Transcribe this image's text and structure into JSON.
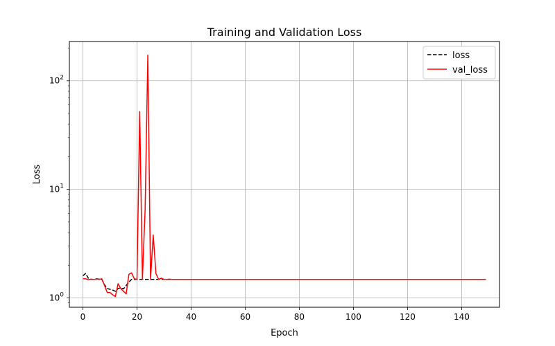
{
  "chart_data": {
    "type": "line",
    "title": "Training and Validation Loss",
    "xlabel": "Epoch",
    "ylabel": "Loss",
    "xlim": [
      -5,
      154
    ],
    "ylim": [
      0.82,
      230
    ],
    "yscale": "log",
    "grid": true,
    "legend_position": "top-right",
    "x_ticks": [
      0,
      20,
      40,
      60,
      80,
      100,
      120,
      140
    ],
    "x_tick_labels": [
      "0",
      "20",
      "40",
      "60",
      "80",
      "100",
      "120",
      "140"
    ],
    "y_ticks": [
      1,
      10,
      100
    ],
    "y_tick_labels": [
      {
        "base": "10",
        "exp": "0"
      },
      {
        "base": "10",
        "exp": "1"
      },
      {
        "base": "10",
        "exp": "2"
      }
    ],
    "series": [
      {
        "name": "loss",
        "color": "#000000",
        "dash": "dashed",
        "x": [
          0,
          1,
          2,
          3,
          4,
          5,
          6,
          7,
          8,
          9,
          10,
          11,
          12,
          13,
          14,
          15,
          16,
          17,
          18,
          19,
          20,
          21,
          22,
          23,
          24,
          25,
          26,
          27,
          28,
          29,
          30,
          31,
          32,
          33,
          34,
          35,
          36,
          37,
          38,
          39,
          40,
          41,
          42,
          43,
          44,
          45,
          46,
          47,
          48,
          49,
          50,
          51,
          52,
          53,
          54,
          55,
          56,
          57,
          58,
          59,
          60,
          61,
          62,
          63,
          64,
          65,
          66,
          67,
          68,
          69,
          70,
          71,
          72,
          73,
          74,
          75,
          76,
          77,
          78,
          79,
          80,
          81,
          82,
          83,
          84,
          85,
          86,
          87,
          88,
          89,
          90,
          91,
          92,
          93,
          94,
          95,
          96,
          97,
          98,
          99,
          100,
          101,
          102,
          103,
          104,
          105,
          106,
          107,
          108,
          109,
          110,
          111,
          112,
          113,
          114,
          115,
          116,
          117,
          118,
          119,
          120,
          121,
          122,
          123,
          124,
          125,
          126,
          127,
          128,
          129,
          130,
          131,
          132,
          133,
          134,
          135,
          136,
          137,
          138,
          139,
          140,
          141,
          142,
          143,
          144,
          145,
          146,
          147,
          148,
          149
        ],
        "y": [
          1.6,
          1.68,
          1.52,
          1.48,
          1.48,
          1.5,
          1.49,
          1.48,
          1.32,
          1.22,
          1.2,
          1.18,
          1.15,
          1.22,
          1.24,
          1.21,
          1.3,
          1.4,
          1.48,
          1.48,
          1.48,
          1.48,
          1.48,
          1.48,
          1.48,
          1.48,
          1.48,
          1.48,
          1.48,
          1.48,
          1.48,
          1.48,
          1.48,
          1.48,
          1.48,
          1.48,
          1.48,
          1.48,
          1.48,
          1.48,
          1.48,
          1.48,
          1.48,
          1.48,
          1.48,
          1.48,
          1.48,
          1.48,
          1.48,
          1.48,
          1.48,
          1.48,
          1.48,
          1.48,
          1.48,
          1.48,
          1.48,
          1.48,
          1.48,
          1.48,
          1.48,
          1.48,
          1.48,
          1.48,
          1.48,
          1.48,
          1.48,
          1.48,
          1.48,
          1.48,
          1.48,
          1.48,
          1.48,
          1.48,
          1.48,
          1.48,
          1.48,
          1.48,
          1.48,
          1.48,
          1.48,
          1.48,
          1.48,
          1.48,
          1.48,
          1.48,
          1.48,
          1.48,
          1.48,
          1.48,
          1.48,
          1.48,
          1.48,
          1.48,
          1.48,
          1.48,
          1.48,
          1.48,
          1.48,
          1.48,
          1.48,
          1.48,
          1.48,
          1.48,
          1.48,
          1.48,
          1.48,
          1.48,
          1.48,
          1.48,
          1.48,
          1.48,
          1.48,
          1.48,
          1.48,
          1.48,
          1.48,
          1.48,
          1.48,
          1.48,
          1.48,
          1.48,
          1.48,
          1.48,
          1.48,
          1.48,
          1.48,
          1.48,
          1.48,
          1.48,
          1.48,
          1.48,
          1.48,
          1.48,
          1.48,
          1.48,
          1.48,
          1.48,
          1.48,
          1.48,
          1.48,
          1.48,
          1.48,
          1.48,
          1.48,
          1.48,
          1.48,
          1.48,
          1.48,
          1.48
        ]
      },
      {
        "name": "val_loss",
        "color": "#ff0000",
        "dash": "solid",
        "x": [
          0,
          1,
          2,
          3,
          4,
          5,
          6,
          7,
          8,
          9,
          10,
          11,
          12,
          13,
          14,
          15,
          16,
          17,
          18,
          19,
          20,
          21,
          22,
          23,
          24,
          25,
          26,
          27,
          28,
          29,
          30,
          31,
          32,
          33,
          34,
          35,
          36,
          37,
          38,
          39,
          40,
          41,
          42,
          43,
          44,
          45,
          46,
          47,
          48,
          49,
          50,
          51,
          52,
          53,
          54,
          55,
          56,
          57,
          58,
          59,
          60,
          61,
          62,
          63,
          64,
          65,
          66,
          67,
          68,
          69,
          70,
          71,
          72,
          73,
          74,
          75,
          76,
          77,
          78,
          79,
          80,
          81,
          82,
          83,
          84,
          85,
          86,
          87,
          88,
          89,
          90,
          91,
          92,
          93,
          94,
          95,
          96,
          97,
          98,
          99,
          100,
          101,
          102,
          103,
          104,
          105,
          106,
          107,
          108,
          109,
          110,
          111,
          112,
          113,
          114,
          115,
          116,
          117,
          118,
          119,
          120,
          121,
          122,
          123,
          124,
          125,
          126,
          127,
          128,
          129,
          130,
          131,
          132,
          133,
          134,
          135,
          136,
          137,
          138,
          139,
          140,
          141,
          142,
          143,
          144,
          145,
          146,
          147,
          148,
          149
        ],
        "y": [
          1.5,
          1.5,
          1.47,
          1.49,
          1.48,
          1.49,
          1.48,
          1.5,
          1.3,
          1.12,
          1.12,
          1.07,
          1.03,
          1.35,
          1.22,
          1.15,
          1.09,
          1.65,
          1.7,
          1.5,
          1.48,
          52,
          1.48,
          6.5,
          172,
          1.48,
          3.8,
          1.68,
          1.48,
          1.52,
          1.48,
          1.48,
          1.49,
          1.48,
          1.48,
          1.48,
          1.48,
          1.48,
          1.48,
          1.48,
          1.48,
          1.48,
          1.48,
          1.48,
          1.48,
          1.48,
          1.48,
          1.48,
          1.48,
          1.48,
          1.48,
          1.48,
          1.48,
          1.48,
          1.48,
          1.48,
          1.48,
          1.48,
          1.48,
          1.48,
          1.48,
          1.48,
          1.48,
          1.48,
          1.48,
          1.48,
          1.48,
          1.48,
          1.48,
          1.48,
          1.48,
          1.48,
          1.48,
          1.48,
          1.48,
          1.48,
          1.48,
          1.48,
          1.48,
          1.48,
          1.48,
          1.48,
          1.48,
          1.48,
          1.48,
          1.48,
          1.48,
          1.48,
          1.48,
          1.48,
          1.48,
          1.48,
          1.48,
          1.48,
          1.48,
          1.48,
          1.48,
          1.48,
          1.48,
          1.48,
          1.48,
          1.48,
          1.48,
          1.48,
          1.48,
          1.48,
          1.48,
          1.48,
          1.48,
          1.48,
          1.48,
          1.48,
          1.48,
          1.48,
          1.48,
          1.48,
          1.48,
          1.48,
          1.48,
          1.48,
          1.48,
          1.48,
          1.48,
          1.48,
          1.48,
          1.48,
          1.48,
          1.48,
          1.48,
          1.48,
          1.48,
          1.48,
          1.48,
          1.48,
          1.48,
          1.48,
          1.48,
          1.48,
          1.48,
          1.48,
          1.48,
          1.48,
          1.48,
          1.48,
          1.48,
          1.48,
          1.48,
          1.48,
          1.48,
          1.48
        ]
      }
    ]
  }
}
